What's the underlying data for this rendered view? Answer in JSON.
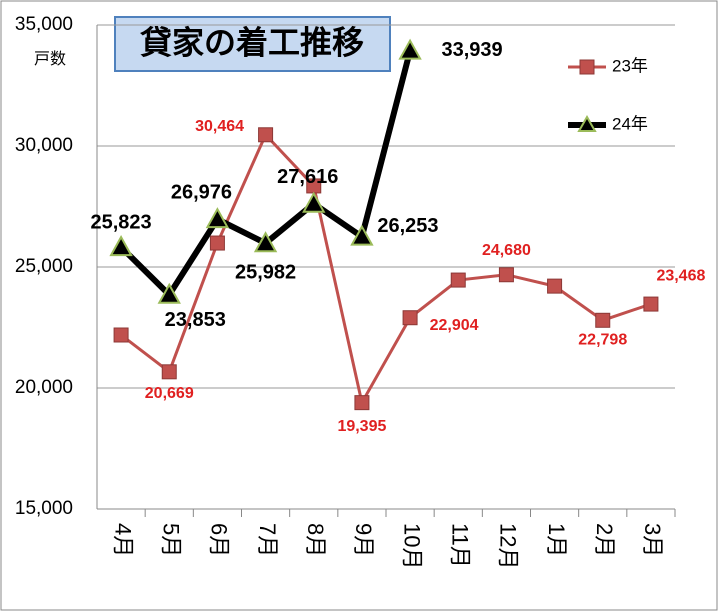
{
  "chart_data": {
    "type": "line",
    "title": "貸家の着工推移",
    "y_label": "戸数",
    "categories": [
      "4月",
      "5月",
      "6月",
      "7月",
      "8月",
      "9月",
      "10月",
      "11月",
      "12月",
      "1月",
      "2月",
      "3月"
    ],
    "series": [
      {
        "name": "23年",
        "color": "#c0504d",
        "values": [
          22190,
          20669,
          25990,
          30464,
          28350,
          19395,
          22904,
          24460,
          24680,
          24210,
          22798,
          23468
        ],
        "value_labels": [
          null,
          "20,669",
          null,
          "30,464",
          null,
          "19,395",
          "22,904",
          null,
          "24,680",
          null,
          "22,798",
          "23,468"
        ]
      },
      {
        "name": "24年",
        "color": "#000000",
        "values": [
          25823,
          23853,
          26976,
          25982,
          27616,
          26253,
          33939,
          null,
          null,
          null,
          null,
          null
        ],
        "value_labels": [
          "25,823",
          "23,853",
          "26,976",
          "25,982",
          "27,616",
          "26,253",
          "33,939",
          null,
          null,
          null,
          null,
          null
        ]
      }
    ],
    "ylim": [
      15000,
      35000
    ],
    "yticks": [
      {
        "value": 15000,
        "label": "15,000"
      },
      {
        "value": 20000,
        "label": "20,000"
      },
      {
        "value": 25000,
        "label": "25,000"
      },
      {
        "value": 30000,
        "label": "30,000"
      },
      {
        "value": 35000,
        "label": "35,000"
      }
    ],
    "grid": true,
    "legend": "upper right"
  }
}
